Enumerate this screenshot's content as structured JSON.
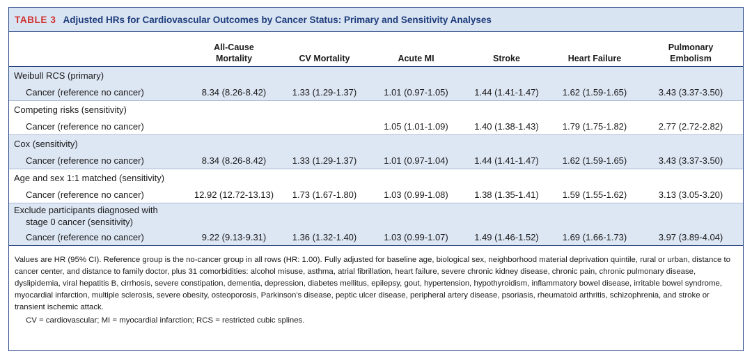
{
  "table": {
    "label": "TABLE 3",
    "title": "Adjusted HRs for Cardiovascular Outcomes by Cancer Status: Primary and Sensitivity Analyses",
    "columns": [
      {
        "line1": "",
        "line2": ""
      },
      {
        "line1": "All-Cause",
        "line2": "Mortality"
      },
      {
        "line1": "",
        "line2": "CV Mortality"
      },
      {
        "line1": "",
        "line2": "Acute MI"
      },
      {
        "line1": "",
        "line2": "Stroke"
      },
      {
        "line1": "",
        "line2": "Heart Failure"
      },
      {
        "line1": "Pulmonary",
        "line2": "Embolism"
      }
    ],
    "groups": [
      {
        "label": "Weibull RCS (primary)",
        "row": {
          "label": "Cancer (reference no cancer)",
          "values": [
            "8.34 (8.26-8.42)",
            "1.33 (1.29-1.37)",
            "1.01 (0.97-1.05)",
            "1.44 (1.41-1.47)",
            "1.62 (1.59-1.65)",
            "3.43 (3.37-3.50)"
          ]
        }
      },
      {
        "label": "Competing risks (sensitivity)",
        "row": {
          "label": "Cancer (reference no cancer)",
          "values": [
            "",
            "",
            "1.05 (1.01-1.09)",
            "1.40 (1.38-1.43)",
            "1.79 (1.75-1.82)",
            "2.77 (2.72-2.82)"
          ]
        }
      },
      {
        "label": "Cox (sensitivity)",
        "row": {
          "label": "Cancer (reference no cancer)",
          "values": [
            "8.34 (8.26-8.42)",
            "1.33 (1.29-1.37)",
            "1.01 (0.97-1.04)",
            "1.44 (1.41-1.47)",
            "1.62 (1.59-1.65)",
            "3.43 (3.37-3.50)"
          ]
        }
      },
      {
        "label": "Age and sex 1:1 matched (sensitivity)",
        "row": {
          "label": "Cancer (reference no cancer)",
          "values": [
            "12.92 (12.72-13.13)",
            "1.73 (1.67-1.80)",
            "1.03 (0.99-1.08)",
            "1.38 (1.35-1.41)",
            "1.59 (1.55-1.62)",
            "3.13 (3.05-3.20)"
          ]
        }
      },
      {
        "label_line1": "Exclude participants diagnosed with",
        "label_line2": "stage 0 cancer (sensitivity)",
        "row": {
          "label": "Cancer (reference no cancer)",
          "values": [
            "9.22 (9.13-9.31)",
            "1.36 (1.32-1.40)",
            "1.03 (0.99-1.07)",
            "1.49 (1.46-1.52)",
            "1.69 (1.66-1.73)",
            "3.97 (3.89-4.04)"
          ]
        }
      }
    ],
    "footnote": "Values are HR (95% CI). Reference group is the no-cancer group in all rows (HR: 1.00). Fully adjusted for baseline age, biological sex, neighborhood material deprivation quintile, rural or urban, distance to cancer center, and distance to family doctor, plus 31 comorbidities: alcohol misuse, asthma, atrial fibrillation, heart failure, severe chronic kidney disease, chronic pain, chronic pulmonary disease, dyslipidemia, viral hepatitis B, cirrhosis, severe constipation, dementia, depression, diabetes mellitus, epilepsy, gout, hypertension, hypothyroidism, inflammatory bowel disease, irritable bowel syndrome, myocardial infarction, multiple sclerosis, severe obesity, osteoporosis, Parkinson's disease, peptic ulcer disease, peripheral artery disease, psoriasis, rheumatoid arthritis, schizophrenia, and stroke or transient ischemic attack.",
    "abbreviations": "CV = cardiovascular; MI = myocardial infarction; RCS = restricted cubic splines.",
    "colors": {
      "label_red": "#d0312d",
      "title_blue": "#1d3c7a",
      "header_bg": "#d9e4f3",
      "row_blue": "#dde6f3"
    }
  }
}
